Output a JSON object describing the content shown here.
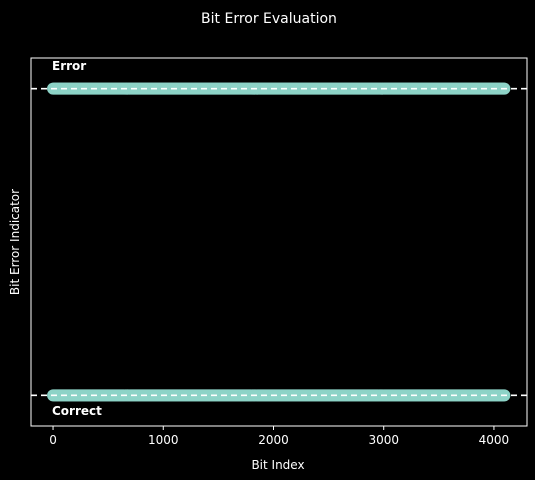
{
  "colors": {
    "background": "#000000",
    "foreground": "#ffffff",
    "series": "#8dd3c7"
  },
  "chart_data": {
    "type": "scatter",
    "title": "Bit Error Evaluation",
    "xlabel": "Bit Index",
    "ylabel": "Bit Error Indicator",
    "xlim": [
      -200,
      4300
    ],
    "ylim": [
      -0.1,
      1.1
    ],
    "xticks": [
      0,
      1000,
      2000,
      3000,
      4000
    ],
    "yticks": [],
    "grid": false,
    "legend": "none",
    "reference_lines": [
      {
        "y": 0,
        "style": "dashed"
      },
      {
        "y": 1,
        "style": "dashed"
      }
    ],
    "annotations": [
      {
        "text": "Error",
        "x": 0,
        "y": 1
      },
      {
        "text": "Correct",
        "x": 0,
        "y": 0
      }
    ],
    "series": [
      {
        "x_range": [
          0,
          4095
        ],
        "y": 1
      },
      {
        "x_range": [
          0,
          4095
        ],
        "y": 0
      }
    ]
  }
}
